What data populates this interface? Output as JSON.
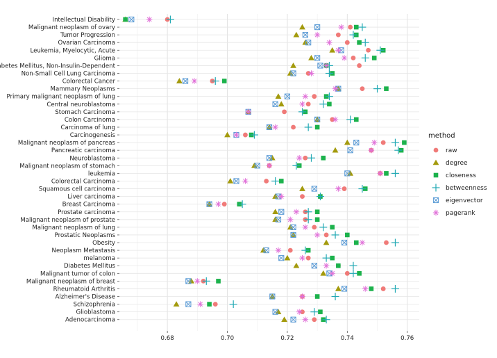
{
  "chart_data": {
    "type": "scatter",
    "title": "",
    "xlabel": "",
    "ylabel": "",
    "xlim": [
      0.664,
      0.764
    ],
    "xticks": [
      0.68,
      0.7,
      0.72,
      0.74,
      0.76
    ],
    "xtick_labels": [
      "0.68",
      "0.70",
      "0.72",
      "0.74",
      "0.76"
    ],
    "grid": true,
    "legend": {
      "title": "method",
      "placement": "right"
    },
    "categories": [
      "Intellectual Disability",
      "Malignant neoplasm of ovary",
      "Tumor Progression",
      "Ovarian Carcinoma",
      "Leukemia, Myelocytic, Acute",
      "Glioma",
      "Diabetes Mellitus, Non-Insulin-Dependent",
      "Non-Small Cell Lung Carcinoma",
      "Colorectal Cancer",
      "Mammary Neoplasms",
      "Primary malignant neoplasm of lung",
      "Central neuroblastoma",
      "Stomach Carcinoma",
      "Colon Carcinoma",
      "Carcinoma of lung",
      "Carcinogenesis",
      "Malignant neoplasm of pancreas",
      "Pancreatic carcinoma",
      "Neuroblastoma",
      "Malignant neoplasm of stomach",
      "leukemia",
      "Colorectal Carcinoma",
      "Squamous cell carcinoma",
      "Liver carcinoma",
      "Breast Carcinoma",
      "Prostate carcinoma",
      "Malignant neoplasm of prostate",
      "Malignant neoplasm of lung",
      "Prostatic Neoplasms",
      "Obesity",
      "Neoplasm Metastasis",
      "melanoma",
      "Diabetes Mellitus",
      "Malignant tumor of colon",
      "Malignant neoplasm of breast",
      "Rheumatoid Arthritis",
      "Alzheimer's Disease",
      "Schizophrenia",
      "Glioblastoma",
      "Adenocarcinoma"
    ],
    "series": [
      {
        "name": "raw",
        "color": "#F07A78",
        "marker": "circle",
        "values": [
          0.68,
          0.741,
          0.737,
          0.74,
          0.747,
          0.742,
          0.744,
          0.727,
          0.695,
          0.745,
          0.729,
          0.727,
          0.719,
          0.735,
          0.722,
          0.706,
          0.752,
          0.748,
          0.726,
          0.714,
          0.751,
          0.713,
          0.739,
          0.725,
          0.699,
          0.726,
          0.726,
          0.729,
          0.733,
          0.753,
          0.721,
          0.727,
          0.737,
          0.74,
          0.692,
          0.752,
          0.725,
          0.696,
          0.725,
          0.729
        ]
      },
      {
        "name": "degree",
        "color": "#A39A0C",
        "marker": "triangle",
        "values": [
          0.666,
          0.725,
          0.723,
          0.726,
          0.735,
          0.728,
          0.722,
          0.721,
          0.684,
          0.737,
          0.717,
          0.718,
          0.707,
          0.73,
          0.714,
          0.7,
          0.74,
          0.736,
          0.715,
          0.709,
          0.741,
          0.701,
          0.725,
          0.716,
          0.694,
          0.716,
          0.716,
          0.721,
          0.722,
          0.733,
          0.712,
          0.72,
          0.723,
          0.732,
          0.688,
          0.737,
          0.715,
          0.683,
          0.717,
          0.719
        ]
      },
      {
        "name": "closeness",
        "color": "#1CB24C",
        "marker": "square",
        "values": [
          0.666,
          0.743,
          0.743,
          0.744,
          0.752,
          0.749,
          0.733,
          0.735,
          0.699,
          0.753,
          0.733,
          0.734,
          0.726,
          0.743,
          0.73,
          0.708,
          0.759,
          0.758,
          0.732,
          0.724,
          0.753,
          0.718,
          0.746,
          0.731,
          0.704,
          0.73,
          0.73,
          0.735,
          0.74,
          0.743,
          0.727,
          0.735,
          0.737,
          0.744,
          0.697,
          0.748,
          0.73,
          0.694,
          0.731,
          0.732
        ]
      },
      {
        "name": "betweenness",
        "color": "#22A9B4",
        "marker": "plus",
        "values": [
          0.681,
          0.745,
          0.742,
          0.746,
          0.751,
          0.746,
          0.734,
          0.734,
          0.696,
          0.75,
          0.734,
          0.732,
          0.725,
          0.741,
          0.727,
          0.709,
          0.756,
          0.757,
          0.728,
          0.723,
          0.756,
          0.716,
          0.745,
          0.731,
          0.705,
          0.727,
          0.727,
          0.732,
          0.736,
          0.756,
          0.726,
          0.733,
          0.742,
          0.742,
          0.693,
          0.756,
          0.736,
          0.702,
          0.729,
          0.733
        ]
      },
      {
        "name": "eigenvector",
        "color": "#5B9BD5",
        "marker": "boxcross",
        "values": [
          0.668,
          0.73,
          0.726,
          0.727,
          0.738,
          0.73,
          0.731,
          0.722,
          0.686,
          0.737,
          0.72,
          0.716,
          0.707,
          0.73,
          0.714,
          0.703,
          0.743,
          0.741,
          0.714,
          0.71,
          0.74,
          0.703,
          0.729,
          0.717,
          0.694,
          0.718,
          0.717,
          0.722,
          0.722,
          0.739,
          0.713,
          0.718,
          0.729,
          0.734,
          0.687,
          0.739,
          0.715,
          0.687,
          0.716,
          0.722
        ]
      },
      {
        "name": "pagerank",
        "color": "#E070D8",
        "marker": "asterisk",
        "values": [
          0.674,
          0.738,
          0.73,
          0.734,
          0.737,
          0.739,
          0.733,
          0.728,
          0.689,
          0.736,
          0.726,
          0.725,
          0.707,
          0.736,
          0.716,
          0.703,
          0.749,
          0.748,
          0.724,
          0.714,
          0.751,
          0.706,
          0.737,
          0.718,
          0.697,
          0.723,
          0.721,
          0.726,
          0.73,
          0.745,
          0.717,
          0.725,
          0.733,
          0.735,
          0.69,
          0.746,
          0.725,
          0.691,
          0.724,
          0.726
        ]
      }
    ]
  }
}
